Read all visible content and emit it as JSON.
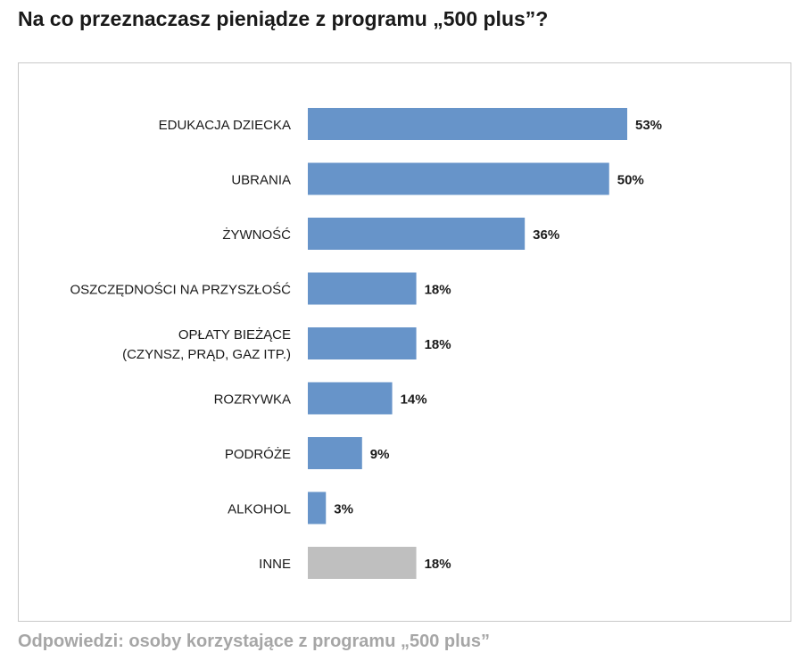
{
  "title": "Na co przeznaczasz pieniądze z programu „500 plus”?",
  "footer": "Odpowiedzi: osoby korzystające z programu „500 plus”",
  "chart_data": {
    "type": "bar",
    "orientation": "horizontal",
    "categories": [
      "EDUKACJA DZIECKA",
      "UBRANIA",
      "ŻYWNOŚĆ",
      "OSZCZĘDNOŚCI NA PRZYSZŁOŚĆ",
      "OPŁATY BIEŻĄCE\n(CZYNSZ, PRĄD, GAZ ITP.)",
      "ROZRYWKA",
      "PODRÓŻE",
      "ALKOHOL",
      "INNE"
    ],
    "values": [
      53,
      50,
      36,
      18,
      18,
      14,
      9,
      3,
      18
    ],
    "data_labels": [
      "53%",
      "50%",
      "36%",
      "18%",
      "18%",
      "14%",
      "9%",
      "3%",
      "18%"
    ],
    "colors": [
      "#6794c9",
      "#6794c9",
      "#6794c9",
      "#6794c9",
      "#6794c9",
      "#6794c9",
      "#6794c9",
      "#6794c9",
      "#bfbfbf"
    ],
    "xlim": [
      0,
      53
    ],
    "grid": false,
    "legend": "none"
  }
}
